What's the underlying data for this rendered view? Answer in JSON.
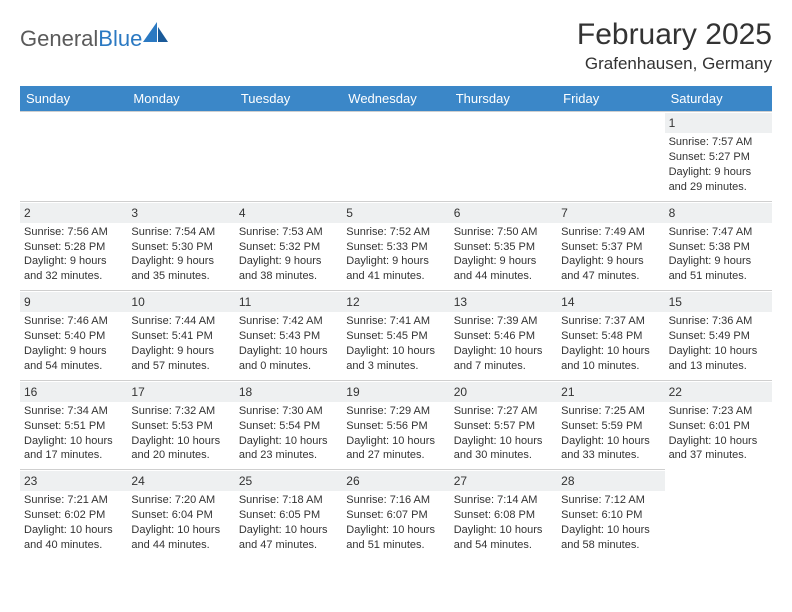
{
  "brand": {
    "part1": "General",
    "part2": "Blue"
  },
  "title": "February 2025",
  "location": "Grafenhausen, Germany",
  "colors": {
    "header_bg": "#3b87c8",
    "header_text": "#ffffff",
    "daynum_bg": "#eef0f1",
    "border": "#cfcfcf",
    "text": "#333333",
    "logo_gray": "#5a5a5a",
    "logo_blue": "#2b79c2"
  },
  "layout": {
    "columns": 7,
    "rows": 5,
    "fontsize_body": 11,
    "fontsize_daynum": 12,
    "fontsize_header": 13,
    "fontsize_title": 30,
    "fontsize_location": 17
  },
  "weekdays": [
    "Sunday",
    "Monday",
    "Tuesday",
    "Wednesday",
    "Thursday",
    "Friday",
    "Saturday"
  ],
  "leading_blanks": 6,
  "days": [
    {
      "n": "1",
      "sunrise": "Sunrise: 7:57 AM",
      "sunset": "Sunset: 5:27 PM",
      "d1": "Daylight: 9 hours",
      "d2": "and 29 minutes."
    },
    {
      "n": "2",
      "sunrise": "Sunrise: 7:56 AM",
      "sunset": "Sunset: 5:28 PM",
      "d1": "Daylight: 9 hours",
      "d2": "and 32 minutes."
    },
    {
      "n": "3",
      "sunrise": "Sunrise: 7:54 AM",
      "sunset": "Sunset: 5:30 PM",
      "d1": "Daylight: 9 hours",
      "d2": "and 35 minutes."
    },
    {
      "n": "4",
      "sunrise": "Sunrise: 7:53 AM",
      "sunset": "Sunset: 5:32 PM",
      "d1": "Daylight: 9 hours",
      "d2": "and 38 minutes."
    },
    {
      "n": "5",
      "sunrise": "Sunrise: 7:52 AM",
      "sunset": "Sunset: 5:33 PM",
      "d1": "Daylight: 9 hours",
      "d2": "and 41 minutes."
    },
    {
      "n": "6",
      "sunrise": "Sunrise: 7:50 AM",
      "sunset": "Sunset: 5:35 PM",
      "d1": "Daylight: 9 hours",
      "d2": "and 44 minutes."
    },
    {
      "n": "7",
      "sunrise": "Sunrise: 7:49 AM",
      "sunset": "Sunset: 5:37 PM",
      "d1": "Daylight: 9 hours",
      "d2": "and 47 minutes."
    },
    {
      "n": "8",
      "sunrise": "Sunrise: 7:47 AM",
      "sunset": "Sunset: 5:38 PM",
      "d1": "Daylight: 9 hours",
      "d2": "and 51 minutes."
    },
    {
      "n": "9",
      "sunrise": "Sunrise: 7:46 AM",
      "sunset": "Sunset: 5:40 PM",
      "d1": "Daylight: 9 hours",
      "d2": "and 54 minutes."
    },
    {
      "n": "10",
      "sunrise": "Sunrise: 7:44 AM",
      "sunset": "Sunset: 5:41 PM",
      "d1": "Daylight: 9 hours",
      "d2": "and 57 minutes."
    },
    {
      "n": "11",
      "sunrise": "Sunrise: 7:42 AM",
      "sunset": "Sunset: 5:43 PM",
      "d1": "Daylight: 10 hours",
      "d2": "and 0 minutes."
    },
    {
      "n": "12",
      "sunrise": "Sunrise: 7:41 AM",
      "sunset": "Sunset: 5:45 PM",
      "d1": "Daylight: 10 hours",
      "d2": "and 3 minutes."
    },
    {
      "n": "13",
      "sunrise": "Sunrise: 7:39 AM",
      "sunset": "Sunset: 5:46 PM",
      "d1": "Daylight: 10 hours",
      "d2": "and 7 minutes."
    },
    {
      "n": "14",
      "sunrise": "Sunrise: 7:37 AM",
      "sunset": "Sunset: 5:48 PM",
      "d1": "Daylight: 10 hours",
      "d2": "and 10 minutes."
    },
    {
      "n": "15",
      "sunrise": "Sunrise: 7:36 AM",
      "sunset": "Sunset: 5:49 PM",
      "d1": "Daylight: 10 hours",
      "d2": "and 13 minutes."
    },
    {
      "n": "16",
      "sunrise": "Sunrise: 7:34 AM",
      "sunset": "Sunset: 5:51 PM",
      "d1": "Daylight: 10 hours",
      "d2": "and 17 minutes."
    },
    {
      "n": "17",
      "sunrise": "Sunrise: 7:32 AM",
      "sunset": "Sunset: 5:53 PM",
      "d1": "Daylight: 10 hours",
      "d2": "and 20 minutes."
    },
    {
      "n": "18",
      "sunrise": "Sunrise: 7:30 AM",
      "sunset": "Sunset: 5:54 PM",
      "d1": "Daylight: 10 hours",
      "d2": "and 23 minutes."
    },
    {
      "n": "19",
      "sunrise": "Sunrise: 7:29 AM",
      "sunset": "Sunset: 5:56 PM",
      "d1": "Daylight: 10 hours",
      "d2": "and 27 minutes."
    },
    {
      "n": "20",
      "sunrise": "Sunrise: 7:27 AM",
      "sunset": "Sunset: 5:57 PM",
      "d1": "Daylight: 10 hours",
      "d2": "and 30 minutes."
    },
    {
      "n": "21",
      "sunrise": "Sunrise: 7:25 AM",
      "sunset": "Sunset: 5:59 PM",
      "d1": "Daylight: 10 hours",
      "d2": "and 33 minutes."
    },
    {
      "n": "22",
      "sunrise": "Sunrise: 7:23 AM",
      "sunset": "Sunset: 6:01 PM",
      "d1": "Daylight: 10 hours",
      "d2": "and 37 minutes."
    },
    {
      "n": "23",
      "sunrise": "Sunrise: 7:21 AM",
      "sunset": "Sunset: 6:02 PM",
      "d1": "Daylight: 10 hours",
      "d2": "and 40 minutes."
    },
    {
      "n": "24",
      "sunrise": "Sunrise: 7:20 AM",
      "sunset": "Sunset: 6:04 PM",
      "d1": "Daylight: 10 hours",
      "d2": "and 44 minutes."
    },
    {
      "n": "25",
      "sunrise": "Sunrise: 7:18 AM",
      "sunset": "Sunset: 6:05 PM",
      "d1": "Daylight: 10 hours",
      "d2": "and 47 minutes."
    },
    {
      "n": "26",
      "sunrise": "Sunrise: 7:16 AM",
      "sunset": "Sunset: 6:07 PM",
      "d1": "Daylight: 10 hours",
      "d2": "and 51 minutes."
    },
    {
      "n": "27",
      "sunrise": "Sunrise: 7:14 AM",
      "sunset": "Sunset: 6:08 PM",
      "d1": "Daylight: 10 hours",
      "d2": "and 54 minutes."
    },
    {
      "n": "28",
      "sunrise": "Sunrise: 7:12 AM",
      "sunset": "Sunset: 6:10 PM",
      "d1": "Daylight: 10 hours",
      "d2": "and 58 minutes."
    }
  ]
}
